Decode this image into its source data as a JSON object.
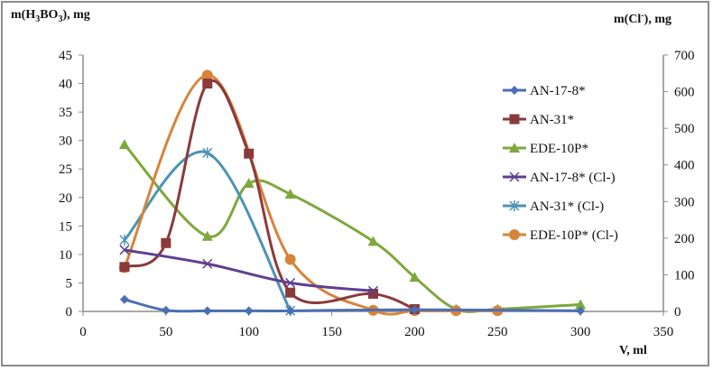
{
  "chart_data": {
    "type": "line",
    "title": "",
    "xlabel": "V, ml",
    "ylabel": "m(H3BO3), mg",
    "ylabel_right": "m(Cl-), mg",
    "xlim": [
      0,
      350
    ],
    "xticks": [
      0,
      50,
      100,
      150,
      200,
      250,
      300,
      350
    ],
    "ylim": [
      0,
      45
    ],
    "yticks": [
      0,
      5,
      10,
      15,
      20,
      25,
      30,
      35,
      40,
      45
    ],
    "ylim_right": [
      0,
      700
    ],
    "yticks_right": [
      0,
      100,
      200,
      300,
      400,
      500,
      600,
      700
    ],
    "grid": false,
    "legend_position": "right",
    "series": [
      {
        "name": "AN-17-8*",
        "axis": "left",
        "color": "#4a6fb5",
        "marker": "diamond",
        "x": [
          25,
          50,
          75,
          100,
          125,
          200,
          300
        ],
        "values": [
          2.1,
          0.2,
          0.1,
          0.1,
          0.1,
          0.3,
          0.1
        ]
      },
      {
        "name": "AN-31*",
        "axis": "left",
        "color": "#8b3a3a",
        "marker": "square",
        "x": [
          25,
          50,
          75,
          100,
          125,
          175,
          200
        ],
        "values": [
          7.8,
          12.0,
          40.0,
          27.7,
          3.3,
          3.1,
          0.4
        ]
      },
      {
        "name": "EDE-10P*",
        "axis": "left",
        "color": "#7ea83c",
        "marker": "triangle",
        "x": [
          25,
          75,
          100,
          125,
          175,
          200,
          225,
          250,
          300
        ],
        "values": [
          29.3,
          13.2,
          22.5,
          20.6,
          12.3,
          6.0,
          0.4,
          0.4,
          1.2
        ]
      },
      {
        "name": "AN-17-8* (Cl-)",
        "axis": "right",
        "color": "#5e3f8f",
        "marker": "x",
        "x": [
          25,
          75,
          125,
          175
        ],
        "values": [
          168,
          130,
          78,
          56
        ]
      },
      {
        "name": "AN-31* (Cl-)",
        "axis": "right",
        "color": "#4b93b5",
        "marker": "star",
        "x": [
          25,
          75,
          125
        ],
        "values": [
          195,
          433,
          2
        ]
      },
      {
        "name": "EDE-10P* (Cl-)",
        "axis": "right",
        "color": "#d6843a",
        "marker": "circle",
        "x": [
          25,
          75,
          125,
          175,
          200,
          225,
          250
        ],
        "values": [
          120,
          645,
          142,
          3,
          2,
          2,
          2
        ]
      }
    ]
  },
  "labels": {
    "left_title_main": "m(H",
    "left_title_sub1": "3",
    "left_title_mid": "BO",
    "left_title_sub2": "3",
    "left_title_end": "), mg",
    "right_title_main": "m(Cl",
    "right_title_sup": "-",
    "right_title_end": "), mg",
    "x_title": "V, ml"
  }
}
